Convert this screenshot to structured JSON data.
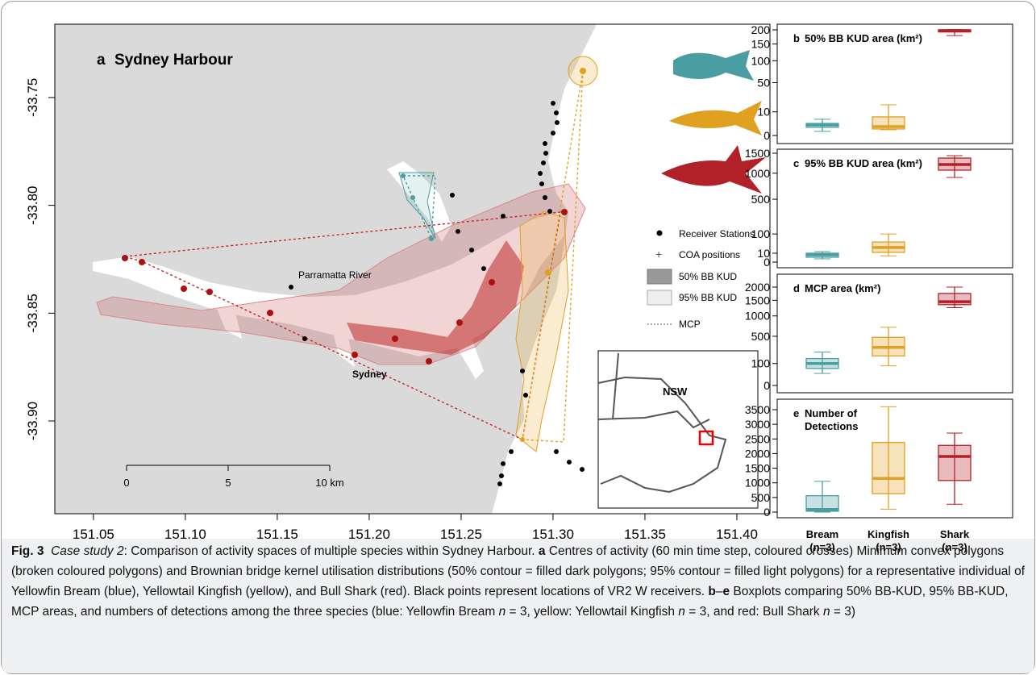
{
  "chart_data": [
    {
      "type": "map",
      "panel": "a",
      "title": "Sydney Harbour",
      "xlim": [
        151.029,
        151.418
      ],
      "xticks": [
        151.05,
        {
          "value": 151.1,
          "label": "151.10"
        },
        151.15,
        {
          "value": 151.2,
          "label": "151.20"
        },
        151.25,
        {
          "value": 151.3,
          "label": "151.30"
        },
        151.35,
        {
          "value": 151.4,
          "label": "151.40"
        }
      ],
      "ylim": [
        -33.943,
        -33.716
      ],
      "yticks": [
        -33.75,
        {
          "value": -33.8,
          "label": "-33.80"
        },
        -33.85,
        {
          "value": -33.9,
          "label": "-33.90"
        }
      ],
      "place_labels": [
        "Parramatta River",
        "Sydney"
      ],
      "scale_bar": [
        "0",
        "5",
        "10 km"
      ],
      "legend": [
        "Receiver Stations",
        "COA positions",
        "50% BB KUD",
        "95% BB KUD",
        "MCP"
      ],
      "inset_label": "NSW"
    },
    {
      "type": "box",
      "panel": "b",
      "title": [
        "50% BB KUD area (km²)"
      ],
      "scale": "sqrt",
      "ylim": [
        0,
        200
      ],
      "yticks": [
        0,
        10,
        50,
        100,
        150,
        200
      ],
      "boxes": [
        {
          "color": "#4a9ea1",
          "min": 0.3,
          "q1": 1.2,
          "median": 2,
          "q3": 2.6,
          "max": 4.7
        },
        {
          "color": "#e0a020",
          "min": 0.6,
          "q1": 0.75,
          "median": 1.4,
          "q3": 6.2,
          "max": 16.8
        },
        {
          "color": "#b22028",
          "min": 179,
          "q1": 192,
          "median": 197,
          "q3": 200,
          "max": 201
        }
      ]
    },
    {
      "type": "box",
      "panel": "c",
      "title": [
        "95% BB KUD area (km²)"
      ],
      "scale": "sqrt",
      "ylim": [
        0,
        1500
      ],
      "yticks": [
        0,
        10,
        100,
        500,
        1000,
        1500
      ],
      "boxes": [
        {
          "color": "#4a9ea1",
          "min": 1.3,
          "q1": 3,
          "median": 6.7,
          "q3": 10,
          "max": 14
        },
        {
          "color": "#e0a020",
          "min": 5,
          "q1": 12,
          "median": 27,
          "q3": 51,
          "max": 100
        },
        {
          "color": "#b22028",
          "min": 907,
          "q1": 1070,
          "median": 1205,
          "q3": 1370,
          "max": 1434
        }
      ]
    },
    {
      "type": "box",
      "panel": "d",
      "title": [
        "MCP area (km²)"
      ],
      "scale": "sqrt",
      "ylim": [
        0,
        2000
      ],
      "yticks": [
        0,
        100,
        500,
        1000,
        1500,
        2000
      ],
      "boxes": [
        {
          "color": "#4a9ea1",
          "min": 30,
          "q1": 60,
          "median": 100,
          "q3": 150,
          "max": 230
        },
        {
          "color": "#e0a020",
          "min": 80,
          "q1": 180,
          "median": 300,
          "q3": 480,
          "max": 700
        },
        {
          "color": "#b22028",
          "min": 1250,
          "q1": 1350,
          "median": 1450,
          "q3": 1750,
          "max": 2000
        }
      ]
    },
    {
      "type": "box",
      "panel": "e",
      "title": [
        "Number of",
        "Detections"
      ],
      "scale": "linear",
      "ylim": [
        0,
        3500
      ],
      "yticks": [
        0,
        500,
        1000,
        1500,
        2000,
        2500,
        3000,
        3500
      ],
      "boxes": [
        {
          "color": "#4a9ea1",
          "min": 0,
          "q1": 30,
          "median": 90,
          "q3": 560,
          "max": 1050
        },
        {
          "color": "#e0a020",
          "min": 100,
          "q1": 630,
          "median": 1150,
          "q3": 2380,
          "max": 3600
        },
        {
          "color": "#b22028",
          "min": 270,
          "q1": 1080,
          "median": 1900,
          "q3": 2280,
          "max": 2700
        }
      ],
      "categories": [
        "Bream",
        "Kingfish",
        "Shark"
      ],
      "category_notes": [
        "(n=3)",
        "(n=3)",
        "(n=3)"
      ]
    }
  ],
  "caption": {
    "label": "Fig. 3",
    "parts": [
      "Case study 2",
      ": Comparison of activity spaces of multiple species within Sydney Harbour. ",
      "a",
      " Centres of activity (60 min time step, coloured crosses) Minimum convex polygons (broken coloured polygons) and Brownian bridge kernel utilisation distributions (50% contour = filled dark polygons; 95% contour = filled light polygons) for a representative individual of Yellowfin Bream (blue), Yellowtail Kingfish (yellow), and Bull Shark (red). Black points represent locations of VR2 W receivers. ",
      "b",
      "–",
      "e",
      " Boxplots comparing 50% BB-KUD, 95% BB-KUD, MCP areas, and numbers of detections among the three species (blue: Yellowfin Bream ",
      "n",
      " = 3, yellow: Yellowtail Kingfish ",
      "n",
      " = 3, and red: Bull Shark ",
      "n",
      " = 3)"
    ]
  }
}
